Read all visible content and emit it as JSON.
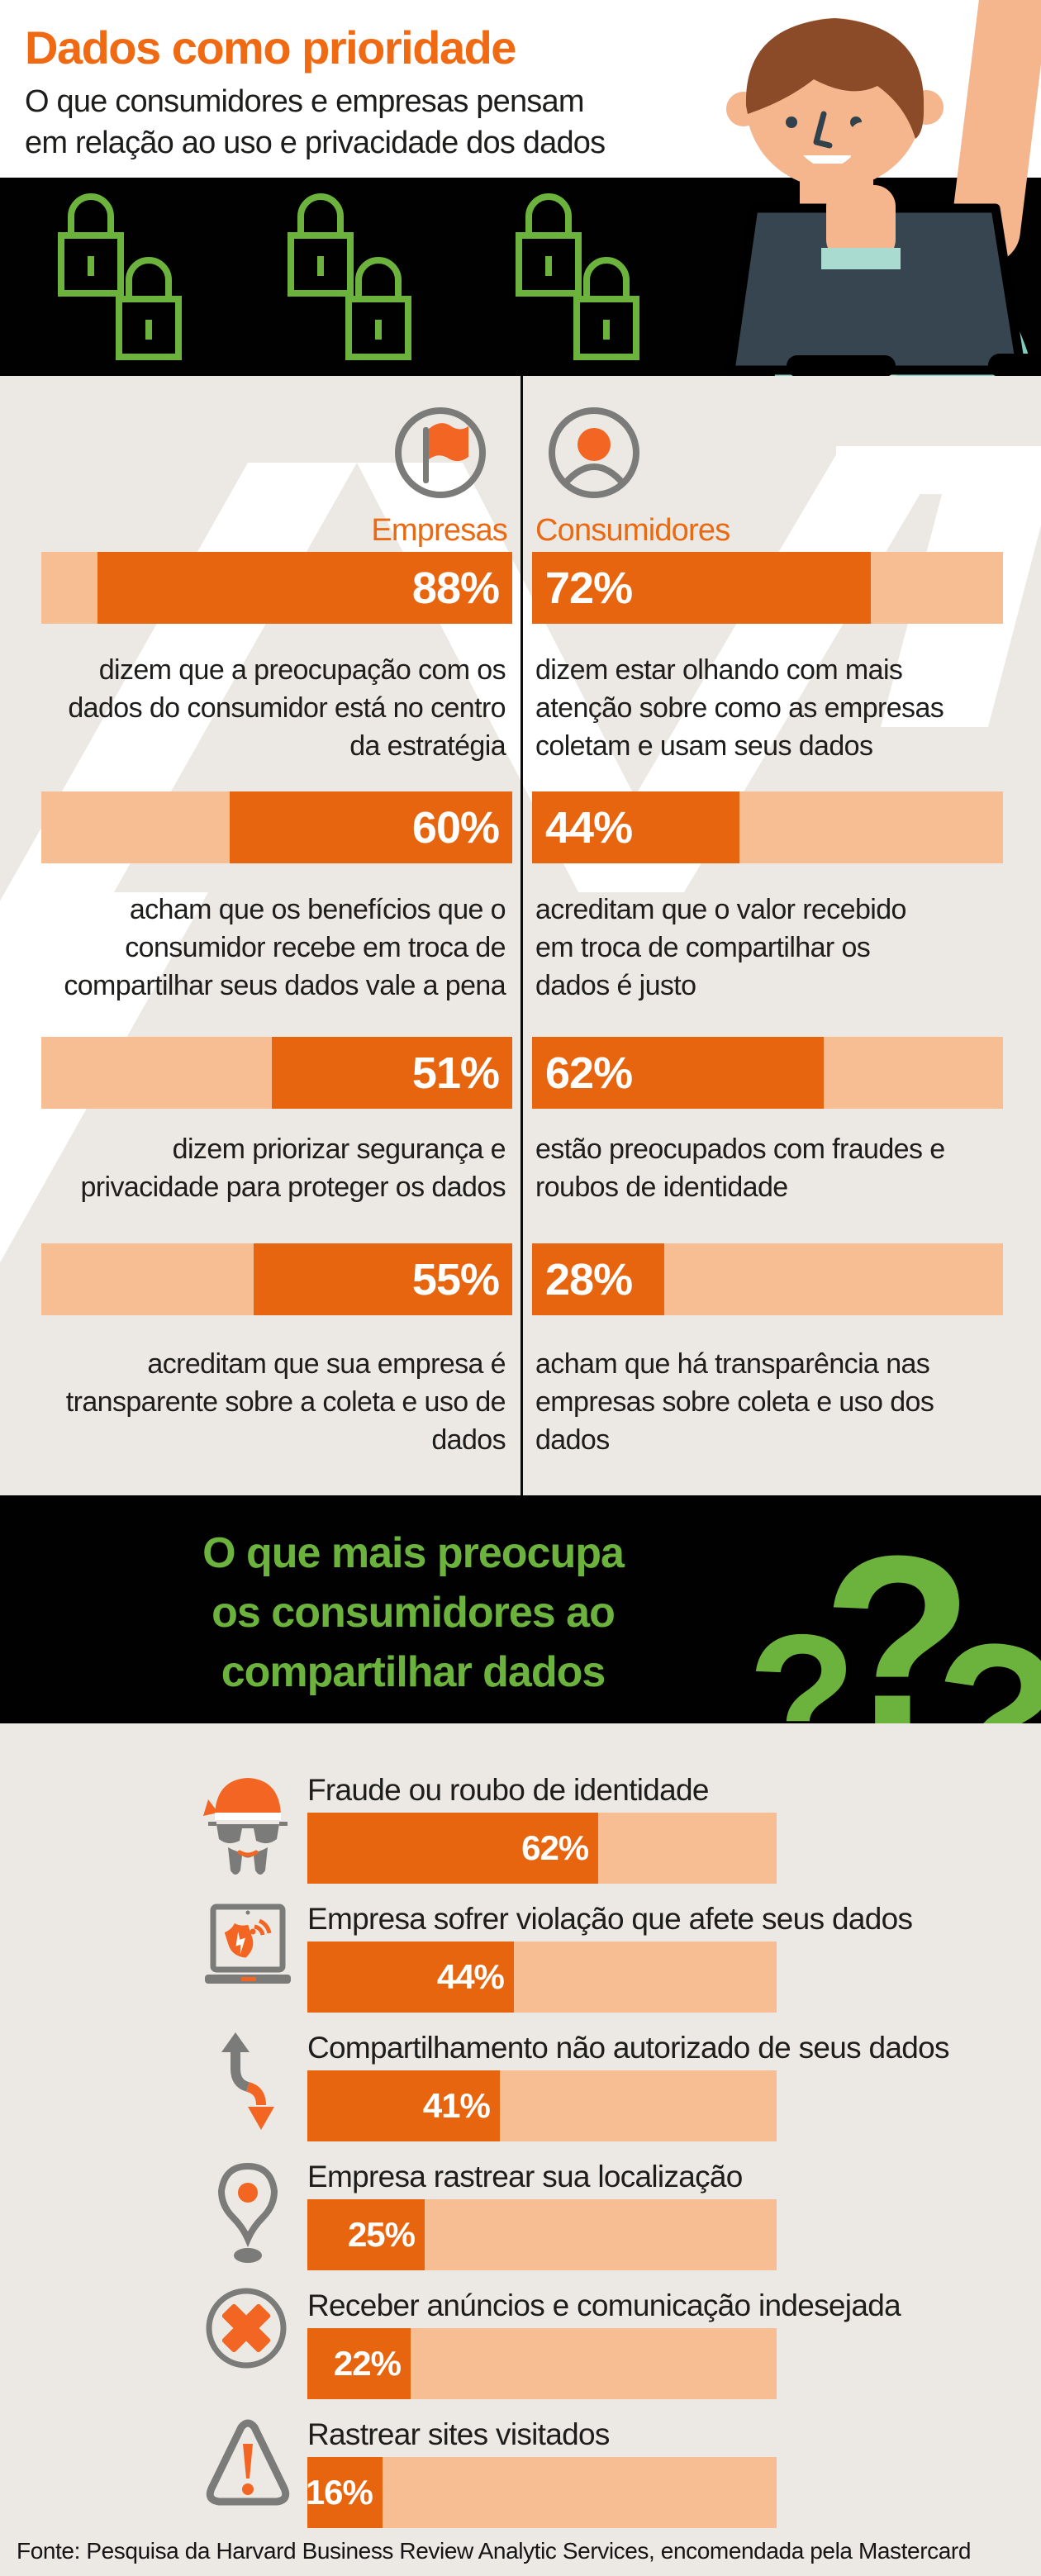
{
  "header": {
    "title": "Dados como prioridade",
    "subtitle": "O que consumidores e empresas pensam\nem relação ao uso e privacidade dos dados"
  },
  "compare": {
    "left_label": "Empresas",
    "right_label": "Consumidores",
    "rows": [
      {
        "left": {
          "value": 88,
          "pct": "88%",
          "text": "dizem que a preocupação com os dados do consumidor está no centro da estratégia"
        },
        "right": {
          "value": 72,
          "pct": "72%",
          "text": "dizem estar olhando com mais atenção sobre como as empresas coletam e usam seus dados"
        }
      },
      {
        "left": {
          "value": 60,
          "pct": "60%",
          "text": "acham que os benefícios que o consumidor recebe em troca de compartilhar seus dados vale a pena"
        },
        "right": {
          "value": 44,
          "pct": "44%",
          "text": "acreditam que o valor recebido em troca de compartilhar os dados é justo"
        }
      },
      {
        "left": {
          "value": 51,
          "pct": "51%",
          "text": "dizem priorizar segurança e privacidade para proteger os dados"
        },
        "right": {
          "value": 62,
          "pct": "62%",
          "text": "estão preocupados com fraudes e roubos de identidade"
        }
      },
      {
        "left": {
          "value": 55,
          "pct": "55%",
          "text": "acreditam que sua empresa é transparente sobre a coleta e uso de dados"
        },
        "right": {
          "value": 28,
          "pct": "28%",
          "text": "acham que há transparência nas empresas sobre coleta e uso dos dados"
        }
      }
    ]
  },
  "concerns": {
    "title": "O que mais preocupa\nos consumidores ao\ncompartilhar dados",
    "qmarks": [
      "?",
      "?",
      "?"
    ],
    "items": [
      {
        "icon": "thief-icon",
        "label": "Fraude ou roubo de identidade",
        "value": 62,
        "pct": "62%"
      },
      {
        "icon": "laptop-breach-icon",
        "label": "Empresa sofrer violação que afete seus dados",
        "value": 44,
        "pct": "44%"
      },
      {
        "icon": "unauthorized-share-icon",
        "label": "Compartilhamento não autorizado de seus dados",
        "value": 41,
        "pct": "41%"
      },
      {
        "icon": "location-pin-icon",
        "label": "Empresa rastrear sua localização",
        "value": 25,
        "pct": "25%"
      },
      {
        "icon": "unwanted-ads-icon",
        "label": "Receber anúncios e comunicação indesejada",
        "value": 22,
        "pct": "22%"
      },
      {
        "icon": "site-tracking-icon",
        "label": "Rastrear sites visitados",
        "value": 16,
        "pct": "16%"
      }
    ]
  },
  "footer": {
    "source": "Fonte: Pesquisa da Harvard Business Review Analytic Services, encomendada pela Mastercard"
  },
  "colors": {
    "accent_orange": "#E8650F",
    "light_orange": "#F8BE93",
    "title_orange": "#EF6A13",
    "green": "#6CB33E",
    "icon_gray": "#7B7B79",
    "background_gray": "#ECE8E3",
    "band_black": "#010101"
  },
  "chart_data": [
    {
      "type": "bar",
      "title": "Empresas",
      "categories": [
        "dizem que a preocupação com os dados do consumidor está no centro da estratégia",
        "acham que os benefícios que o consumidor recebe em troca de compartilhar seus dados vale a pena",
        "dizem priorizar segurança e privacidade para proteger os dados",
        "acreditam que sua empresa é transparente sobre a coleta e uso de dados"
      ],
      "values": [
        88,
        60,
        51,
        55
      ],
      "unit": "%",
      "xlim": [
        0,
        100
      ],
      "bar_alignment": "right"
    },
    {
      "type": "bar",
      "title": "Consumidores",
      "categories": [
        "dizem estar olhando com mais atenção sobre como as empresas coletam e usam seus dados",
        "acreditam que o valor recebido em troca de compartilhar os dados é justo",
        "estão preocupados com fraudes e roubos de identidade",
        "acham que há transparência nas empresas sobre coleta e uso dos dados"
      ],
      "values": [
        72,
        44,
        62,
        28
      ],
      "unit": "%",
      "xlim": [
        0,
        100
      ],
      "bar_alignment": "left"
    },
    {
      "type": "bar",
      "title": "O que mais preocupa os consumidores ao compartilhar dados",
      "categories": [
        "Fraude ou roubo de identidade",
        "Empresa sofrer violação que afete seus dados",
        "Compartilhamento não autorizado de seus dados",
        "Empresa rastrear sua localização",
        "Receber anúncios e comunicação indesejada",
        "Rastrear sites visitados"
      ],
      "values": [
        62,
        44,
        41,
        25,
        22,
        16
      ],
      "unit": "%",
      "xlim": [
        0,
        100
      ],
      "bar_alignment": "left"
    }
  ]
}
